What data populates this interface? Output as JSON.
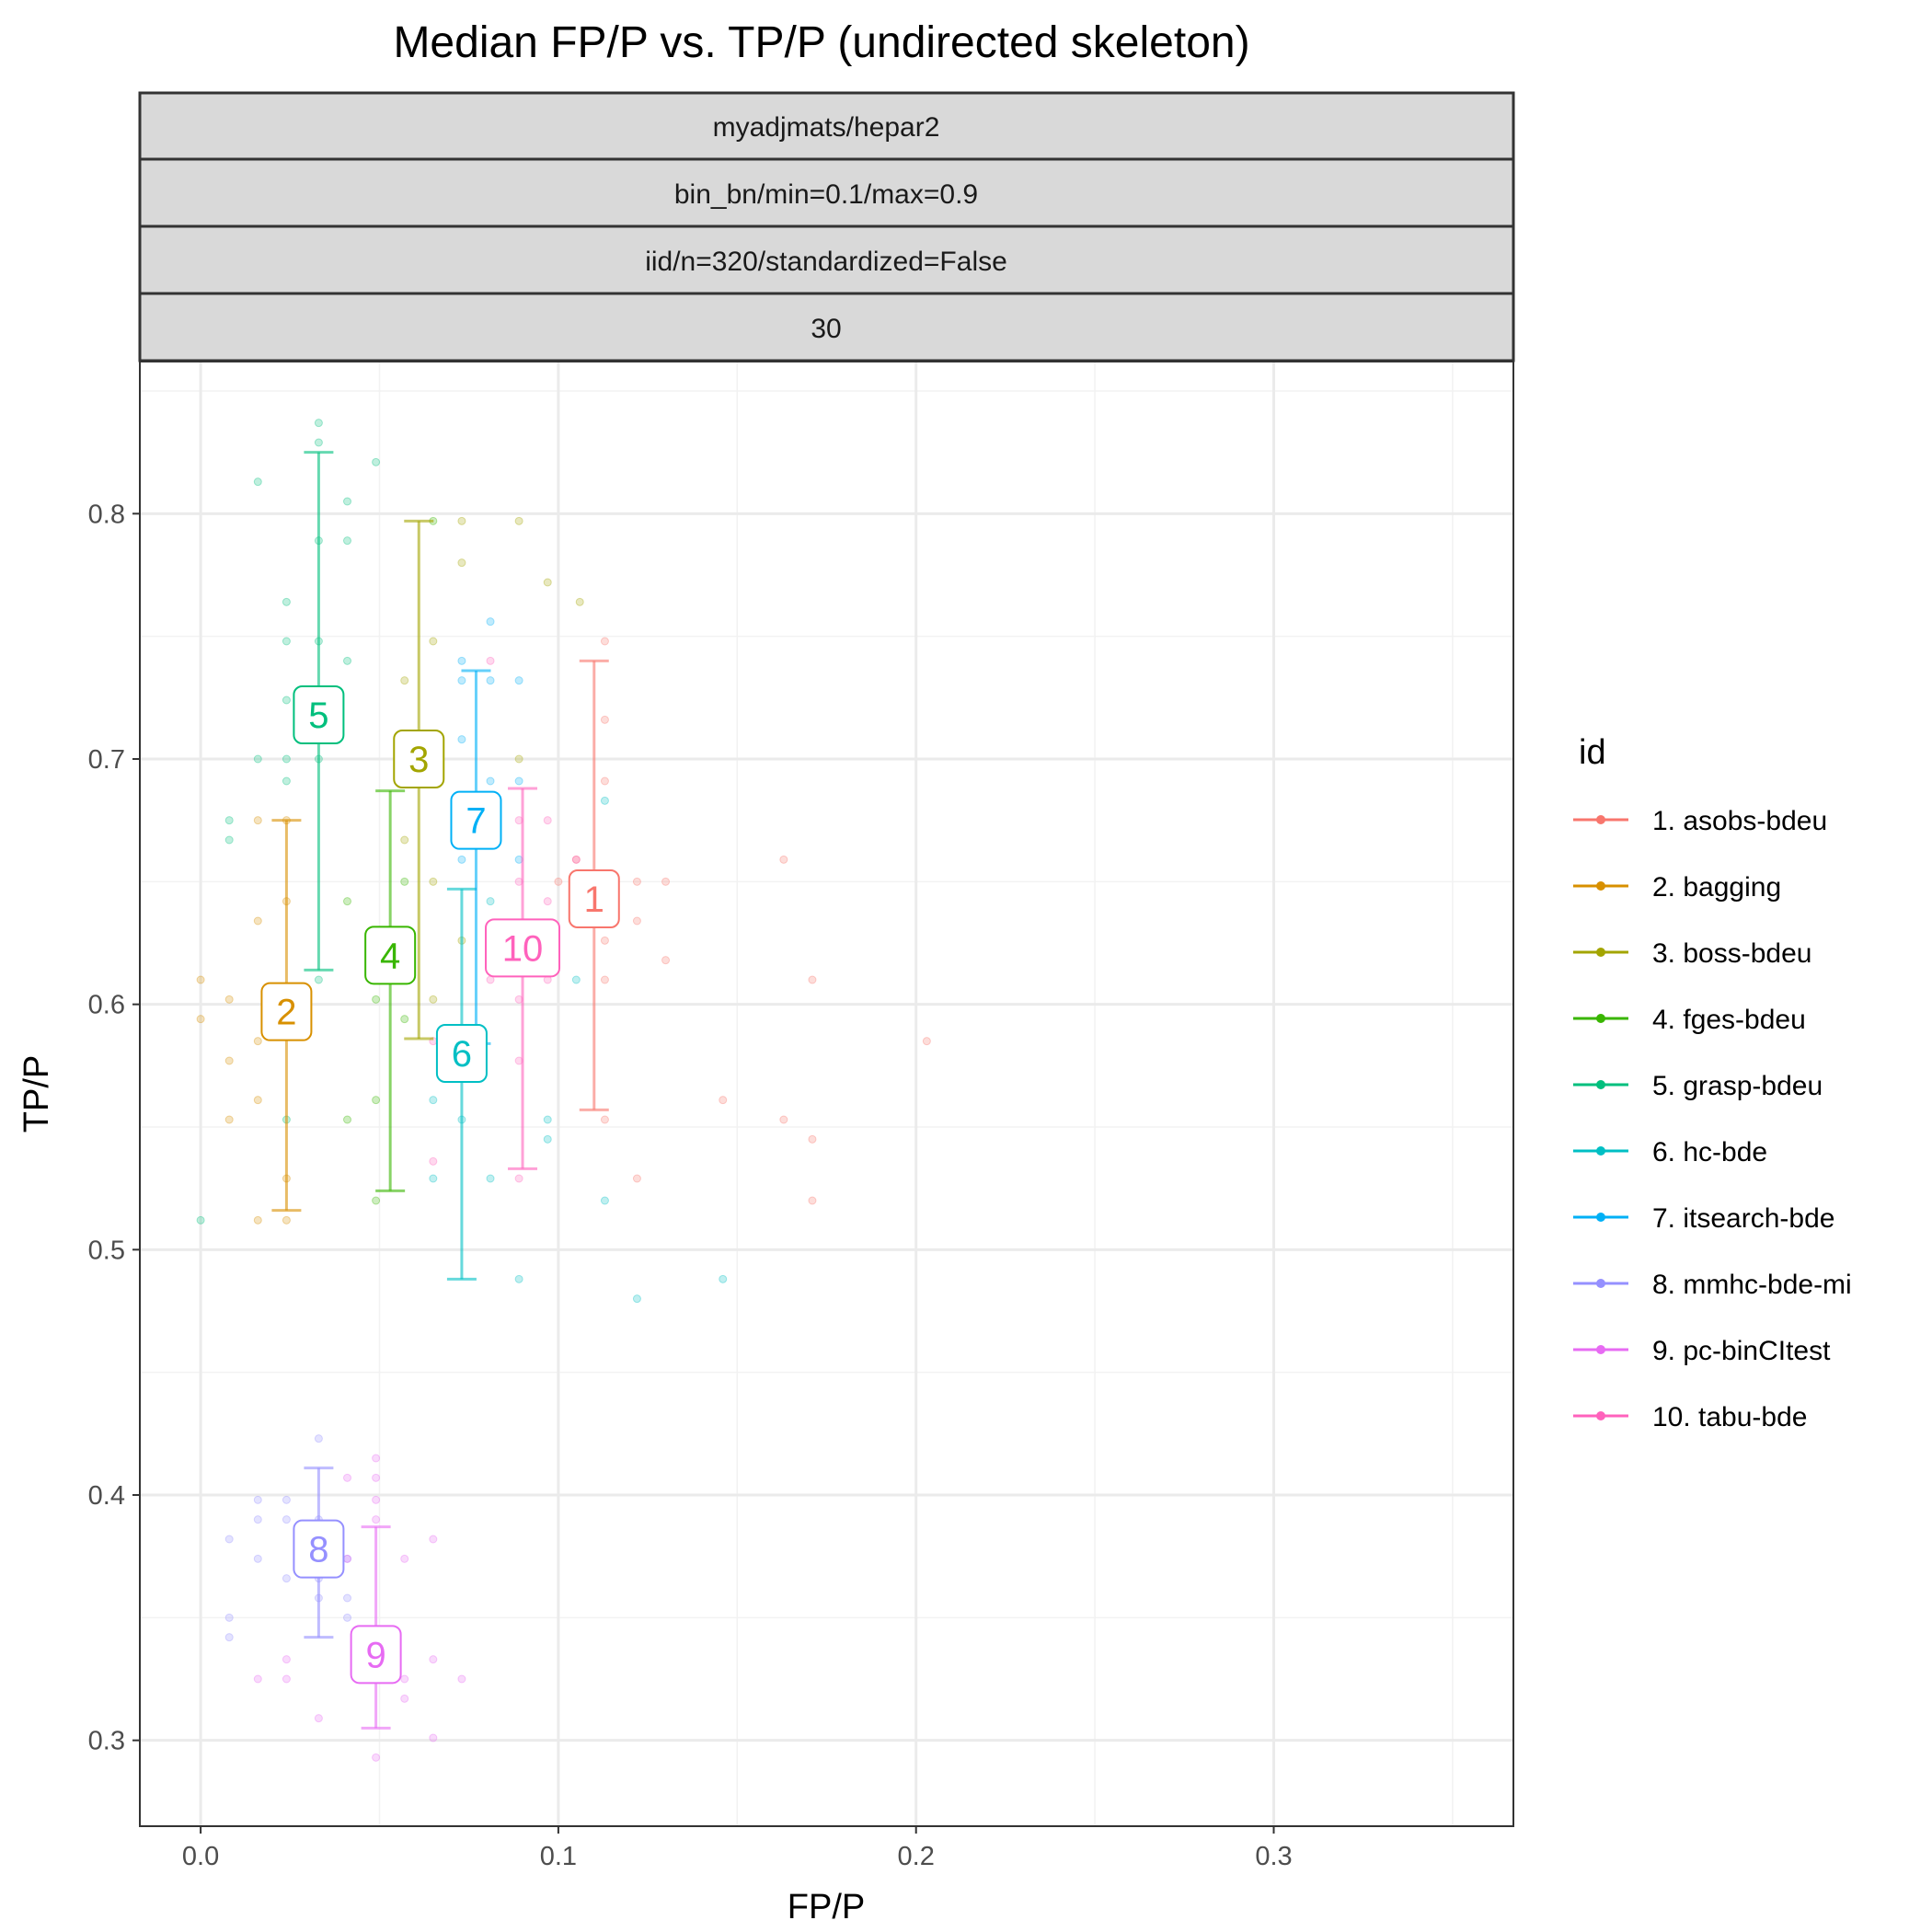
{
  "chart_data": {
    "type": "scatter",
    "title": "Median FP/P vs. TP/P (undirected skeleton)",
    "strips": [
      "myadjmats/hepar2",
      "bin_bn/min=0.1/max=0.9",
      "iid/n=320/standardized=False",
      "30"
    ],
    "xlabel": "FP/P",
    "ylabel": "TP/P",
    "xlim": [
      -0.017,
      0.367
    ],
    "ylim": [
      0.265,
      0.862
    ],
    "x_ticks": [
      0.0,
      0.1,
      0.2,
      0.3
    ],
    "x_tick_labels": [
      "0.0",
      "0.1",
      "0.2",
      "0.3"
    ],
    "y_ticks": [
      0.3,
      0.4,
      0.5,
      0.6,
      0.7,
      0.8
    ],
    "y_tick_labels": [
      "0.3",
      "0.4",
      "0.5",
      "0.6",
      "0.7",
      "0.8"
    ],
    "grid": true,
    "legend_title": "id",
    "legend_position": "right",
    "series": [
      {
        "label": "1",
        "name": "1. asobs-bdeu",
        "color": "#F8766D",
        "median_fp": 0.11,
        "median_tp": 0.643,
        "tp_low": 0.557,
        "tp_high": 0.74,
        "points": [
          [
            0.1,
            0.65
          ],
          [
            0.105,
            0.659
          ],
          [
            0.113,
            0.691
          ],
          [
            0.113,
            0.716
          ],
          [
            0.113,
            0.748
          ],
          [
            0.113,
            0.626
          ],
          [
            0.113,
            0.61
          ],
          [
            0.113,
            0.553
          ],
          [
            0.122,
            0.65
          ],
          [
            0.122,
            0.634
          ],
          [
            0.122,
            0.529
          ],
          [
            0.13,
            0.618
          ],
          [
            0.13,
            0.65
          ],
          [
            0.146,
            0.561
          ],
          [
            0.163,
            0.659
          ],
          [
            0.163,
            0.553
          ],
          [
            0.171,
            0.61
          ],
          [
            0.171,
            0.545
          ],
          [
            0.171,
            0.52
          ],
          [
            0.203,
            0.585
          ]
        ]
      },
      {
        "label": "2",
        "name": "2. bagging",
        "color": "#D89000",
        "median_fp": 0.024,
        "median_tp": 0.597,
        "tp_low": 0.516,
        "tp_high": 0.675,
        "points": [
          [
            0.0,
            0.61
          ],
          [
            0.0,
            0.594
          ],
          [
            0.008,
            0.602
          ],
          [
            0.008,
            0.577
          ],
          [
            0.008,
            0.553
          ],
          [
            0.016,
            0.675
          ],
          [
            0.016,
            0.634
          ],
          [
            0.016,
            0.585
          ],
          [
            0.016,
            0.561
          ],
          [
            0.016,
            0.512
          ],
          [
            0.024,
            0.675
          ],
          [
            0.024,
            0.642
          ],
          [
            0.024,
            0.529
          ],
          [
            0.024,
            0.512
          ]
        ]
      },
      {
        "label": "3",
        "name": "3. boss-bdeu",
        "color": "#A3A500",
        "median_fp": 0.061,
        "median_tp": 0.7,
        "tp_low": 0.586,
        "tp_high": 0.797,
        "points": [
          [
            0.057,
            0.732
          ],
          [
            0.057,
            0.667
          ],
          [
            0.061,
            0.71
          ],
          [
            0.065,
            0.65
          ],
          [
            0.065,
            0.748
          ],
          [
            0.073,
            0.797
          ],
          [
            0.073,
            0.78
          ],
          [
            0.089,
            0.797
          ],
          [
            0.089,
            0.7
          ],
          [
            0.097,
            0.772
          ],
          [
            0.106,
            0.764
          ],
          [
            0.065,
            0.602
          ],
          [
            0.073,
            0.626
          ]
        ]
      },
      {
        "label": "4",
        "name": "4. fges-bdeu",
        "color": "#39B600",
        "median_fp": 0.053,
        "median_tp": 0.62,
        "tp_low": 0.524,
        "tp_high": 0.687,
        "points": [
          [
            0.049,
            0.561
          ],
          [
            0.049,
            0.52
          ],
          [
            0.041,
            0.642
          ],
          [
            0.057,
            0.65
          ],
          [
            0.065,
            0.797
          ],
          [
            0.057,
            0.594
          ],
          [
            0.049,
            0.602
          ],
          [
            0.041,
            0.553
          ]
        ]
      },
      {
        "label": "5",
        "name": "5. grasp-bdeu",
        "color": "#00BF7D",
        "median_fp": 0.033,
        "median_tp": 0.718,
        "tp_low": 0.614,
        "tp_high": 0.825,
        "points": [
          [
            0.0,
            0.512
          ],
          [
            0.016,
            0.813
          ],
          [
            0.024,
            0.764
          ],
          [
            0.024,
            0.748
          ],
          [
            0.024,
            0.724
          ],
          [
            0.024,
            0.7
          ],
          [
            0.024,
            0.691
          ],
          [
            0.033,
            0.837
          ],
          [
            0.033,
            0.829
          ],
          [
            0.033,
            0.789
          ],
          [
            0.033,
            0.748
          ],
          [
            0.033,
            0.7
          ],
          [
            0.041,
            0.805
          ],
          [
            0.041,
            0.789
          ],
          [
            0.041,
            0.74
          ],
          [
            0.049,
            0.821
          ],
          [
            0.016,
            0.7
          ],
          [
            0.024,
            0.553
          ],
          [
            0.033,
            0.61
          ],
          [
            0.008,
            0.667
          ],
          [
            0.008,
            0.675
          ]
        ]
      },
      {
        "label": "6",
        "name": "6. hc-bde",
        "color": "#00BFC4",
        "median_fp": 0.073,
        "median_tp": 0.58,
        "tp_low": 0.488,
        "tp_high": 0.647,
        "points": [
          [
            0.065,
            0.529
          ],
          [
            0.065,
            0.561
          ],
          [
            0.073,
            0.553
          ],
          [
            0.081,
            0.529
          ],
          [
            0.089,
            0.488
          ],
          [
            0.097,
            0.553
          ],
          [
            0.097,
            0.545
          ],
          [
            0.105,
            0.61
          ],
          [
            0.113,
            0.52
          ],
          [
            0.122,
            0.48
          ],
          [
            0.146,
            0.488
          ],
          [
            0.113,
            0.683
          ],
          [
            0.081,
            0.642
          ]
        ]
      },
      {
        "label": "7",
        "name": "7. itsearch-bde",
        "color": "#00B0F6",
        "median_fp": 0.077,
        "median_tp": 0.675,
        "tp_low": 0.584,
        "tp_high": 0.736,
        "points": [
          [
            0.073,
            0.74
          ],
          [
            0.073,
            0.732
          ],
          [
            0.073,
            0.708
          ],
          [
            0.081,
            0.756
          ],
          [
            0.081,
            0.732
          ],
          [
            0.081,
            0.691
          ],
          [
            0.089,
            0.732
          ],
          [
            0.089,
            0.691
          ],
          [
            0.081,
            0.667
          ],
          [
            0.073,
            0.659
          ],
          [
            0.097,
            0.626
          ],
          [
            0.089,
            0.659
          ]
        ]
      },
      {
        "label": "8",
        "name": "8. mmhc-bde-mi",
        "color": "#9590FF",
        "median_fp": 0.033,
        "median_tp": 0.378,
        "tp_low": 0.342,
        "tp_high": 0.411,
        "points": [
          [
            0.008,
            0.382
          ],
          [
            0.008,
            0.35
          ],
          [
            0.008,
            0.342
          ],
          [
            0.016,
            0.398
          ],
          [
            0.016,
            0.39
          ],
          [
            0.016,
            0.374
          ],
          [
            0.024,
            0.398
          ],
          [
            0.024,
            0.39
          ],
          [
            0.024,
            0.366
          ],
          [
            0.033,
            0.423
          ],
          [
            0.033,
            0.39
          ],
          [
            0.033,
            0.366
          ],
          [
            0.033,
            0.358
          ],
          [
            0.041,
            0.374
          ],
          [
            0.041,
            0.358
          ],
          [
            0.041,
            0.35
          ]
        ]
      },
      {
        "label": "9",
        "name": "9. pc-binCItest",
        "color": "#E76BF3",
        "median_fp": 0.049,
        "median_tp": 0.335,
        "tp_low": 0.305,
        "tp_high": 0.387,
        "points": [
          [
            0.016,
            0.325
          ],
          [
            0.024,
            0.333
          ],
          [
            0.024,
            0.325
          ],
          [
            0.033,
            0.309
          ],
          [
            0.041,
            0.407
          ],
          [
            0.041,
            0.374
          ],
          [
            0.049,
            0.415
          ],
          [
            0.049,
            0.407
          ],
          [
            0.049,
            0.398
          ],
          [
            0.049,
            0.39
          ],
          [
            0.049,
            0.293
          ],
          [
            0.057,
            0.374
          ],
          [
            0.057,
            0.325
          ],
          [
            0.057,
            0.317
          ],
          [
            0.065,
            0.382
          ],
          [
            0.065,
            0.333
          ],
          [
            0.065,
            0.301
          ],
          [
            0.073,
            0.325
          ]
        ]
      },
      {
        "label": "10",
        "name": "10. tabu-bde",
        "color": "#FF62BC",
        "median_fp": 0.09,
        "median_tp": 0.623,
        "tp_low": 0.533,
        "tp_high": 0.688,
        "points": [
          [
            0.081,
            0.74
          ],
          [
            0.089,
            0.675
          ],
          [
            0.089,
            0.65
          ],
          [
            0.089,
            0.626
          ],
          [
            0.089,
            0.602
          ],
          [
            0.089,
            0.577
          ],
          [
            0.097,
            0.675
          ],
          [
            0.097,
            0.642
          ],
          [
            0.097,
            0.61
          ],
          [
            0.081,
            0.61
          ],
          [
            0.065,
            0.536
          ],
          [
            0.065,
            0.585
          ],
          [
            0.089,
            0.529
          ],
          [
            0.105,
            0.659
          ]
        ]
      }
    ]
  }
}
